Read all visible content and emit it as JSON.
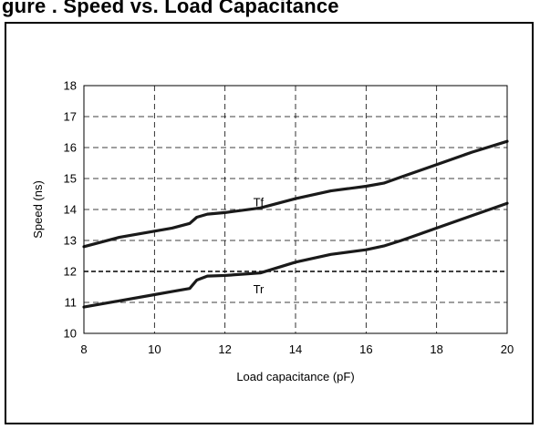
{
  "header": {
    "text": "gure . Speed vs. Load Capacitance"
  },
  "chart_data": {
    "type": "line",
    "title": "",
    "xlabel": "Load capacitance (pF)",
    "ylabel": "Speed (ns)",
    "xlim": [
      8,
      20
    ],
    "ylim": [
      10,
      18
    ],
    "xticks": [
      8,
      10,
      12,
      14,
      16,
      18,
      20
    ],
    "yticks": [
      10,
      11,
      12,
      13,
      14,
      15,
      16,
      17,
      18
    ],
    "grid": true,
    "grid_style": "dashed",
    "reference_line": {
      "y": 12,
      "style": "dashed-bold"
    },
    "series": [
      {
        "name": "Tf",
        "x": [
          8,
          9,
          10,
          10.5,
          11,
          11.2,
          11.5,
          12,
          13,
          14,
          15,
          16,
          16.5,
          17,
          17.5,
          18,
          19,
          20
        ],
        "y": [
          12.8,
          13.1,
          13.3,
          13.4,
          13.55,
          13.75,
          13.85,
          13.9,
          14.05,
          14.35,
          14.6,
          14.75,
          14.85,
          15.05,
          15.25,
          15.45,
          15.85,
          16.2
        ],
        "label_position": {
          "x": 12.8,
          "y": 14.1
        }
      },
      {
        "name": "Tr",
        "x": [
          8,
          9,
          10,
          10.5,
          11,
          11.2,
          11.5,
          12,
          13,
          14,
          15,
          16,
          16.5,
          17,
          17.5,
          18,
          19,
          20
        ],
        "y": [
          10.85,
          11.05,
          11.25,
          11.35,
          11.45,
          11.72,
          11.85,
          11.87,
          11.95,
          12.3,
          12.55,
          12.7,
          12.82,
          13.0,
          13.2,
          13.4,
          13.8,
          14.2
        ],
        "label_position": {
          "x": 12.8,
          "y": 11.3
        }
      }
    ]
  }
}
